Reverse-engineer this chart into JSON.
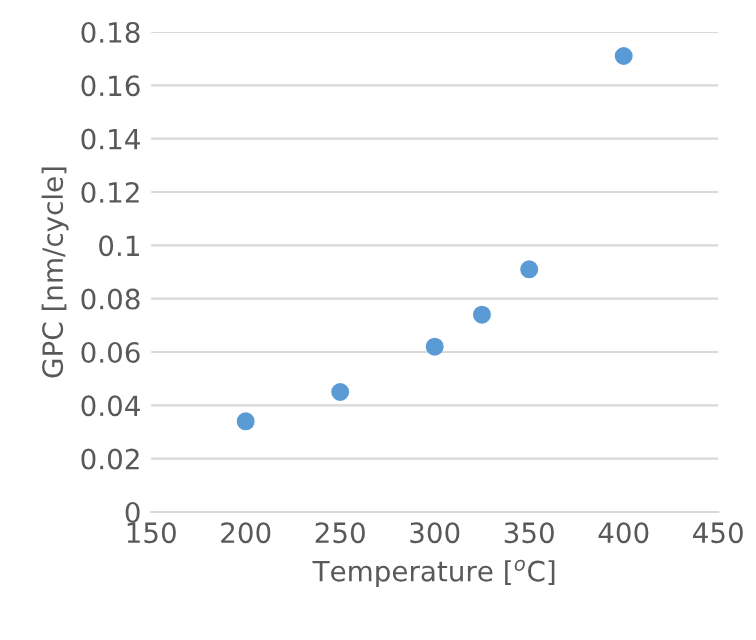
{
  "chart_data": {
    "type": "scatter",
    "xlabel": "Temperature [$^{o}$C]",
    "ylabel": "GPC [nm/cycle]",
    "x": [
      200,
      250,
      300,
      325,
      350,
      400
    ],
    "series": [
      {
        "color": "#5b9bd5",
        "values": [
          0.034,
          0.045,
          0.062,
          0.074,
          0.091,
          0.171
        ]
      }
    ],
    "xlim": [
      150,
      450
    ],
    "xticks": [
      150,
      200,
      250,
      300,
      350,
      400,
      450
    ],
    "ylim": [
      0,
      0.18
    ],
    "yticks": [
      0,
      0.02,
      0.04,
      0.06,
      0.08,
      0.1,
      0.12,
      0.14,
      0.16,
      0.18
    ],
    "grid": "y",
    "marker": "circle"
  }
}
